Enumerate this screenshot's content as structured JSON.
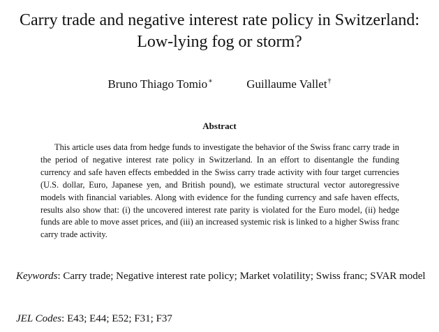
{
  "paper": {
    "title": "Carry trade and negative interest rate policy in Switzerland: Low-lying fog or storm?",
    "authors": [
      {
        "name": "Bruno Thiago Tomio",
        "mark": "∗"
      },
      {
        "name": "Guillaume Vallet",
        "mark": "†"
      }
    ],
    "abstract_heading": "Abstract",
    "abstract_text": "This article uses data from hedge funds to investigate the behavior of the Swiss franc carry trade in the period of negative interest rate policy in Switzerland. In an effort to disentangle the funding currency and safe haven effects embedded in the Swiss carry trade activity with four target currencies (U.S. dollar, Euro, Japanese yen, and British pound), we estimate structural vector autoregressive models with financial variables. Along with evidence for the funding currency and safe haven effects, results also show that: (i) the uncovered interest rate parity is violated for the Euro model, (ii) hedge funds are able to move asset prices, and (iii) an increased systemic risk is linked to a higher Swiss franc carry trade activity.",
    "keywords_label": "Keywords",
    "keywords_text": ": Carry trade; Negative interest rate policy; Market volatility; Swiss franc; SVAR model",
    "jel_label": "JEL Codes",
    "jel_text": ": E43; E44; E52; F31; F37"
  }
}
